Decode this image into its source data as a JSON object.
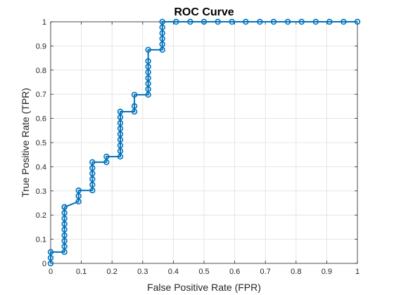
{
  "chart_data": {
    "type": "line",
    "title": "ROC Curve",
    "xlabel": "False Positive Rate (FPR)",
    "ylabel": "True Positive Rate (TPR)",
    "xlim": [
      0,
      1
    ],
    "ylim": [
      0,
      1
    ],
    "x_ticks": [
      "0",
      "0.1",
      "0.2",
      "0.3",
      "0.4",
      "0.5",
      "0.6",
      "0.7",
      "0.8",
      "0.9",
      "1"
    ],
    "y_ticks": [
      "0",
      "0.1",
      "0.2",
      "0.3",
      "0.4",
      "0.5",
      "0.6",
      "0.7",
      "0.8",
      "0.9",
      "1"
    ],
    "grid": true,
    "line_color": "#0072BD",
    "marker": "circle",
    "series": [
      {
        "x": [
          0,
          0,
          0,
          0.045,
          0.045,
          0.045,
          0.045,
          0.045,
          0.045,
          0.045,
          0.045,
          0.045,
          0.045,
          0.091,
          0.091,
          0.091,
          0.136,
          0.136,
          0.136,
          0.136,
          0.136,
          0.136,
          0.182,
          0.182,
          0.227,
          0.227,
          0.227,
          0.227,
          0.227,
          0.227,
          0.227,
          0.227,
          0.227,
          0.273,
          0.273,
          0.273,
          0.318,
          0.318,
          0.318,
          0.318,
          0.318,
          0.318,
          0.318,
          0.318,
          0.364,
          0.364,
          0.364,
          0.364,
          0.364,
          0.364,
          0.409,
          0.455,
          0.5,
          0.545,
          0.591,
          0.636,
          0.682,
          0.727,
          0.773,
          0.818,
          0.864,
          0.909,
          0.955,
          1
        ],
        "y": [
          0,
          0.023,
          0.047,
          0.047,
          0.07,
          0.093,
          0.116,
          0.14,
          0.163,
          0.186,
          0.209,
          0.233,
          0.233,
          0.256,
          0.279,
          0.302,
          0.302,
          0.326,
          0.349,
          0.372,
          0.395,
          0.419,
          0.419,
          0.442,
          0.442,
          0.465,
          0.488,
          0.512,
          0.535,
          0.558,
          0.581,
          0.605,
          0.628,
          0.628,
          0.651,
          0.698,
          0.698,
          0.721,
          0.744,
          0.767,
          0.791,
          0.814,
          0.837,
          0.884,
          0.884,
          0.907,
          0.93,
          0.953,
          0.977,
          1,
          1,
          1,
          1,
          1,
          1,
          1,
          1,
          1,
          1,
          1,
          1,
          1,
          1,
          1
        ]
      }
    ]
  }
}
